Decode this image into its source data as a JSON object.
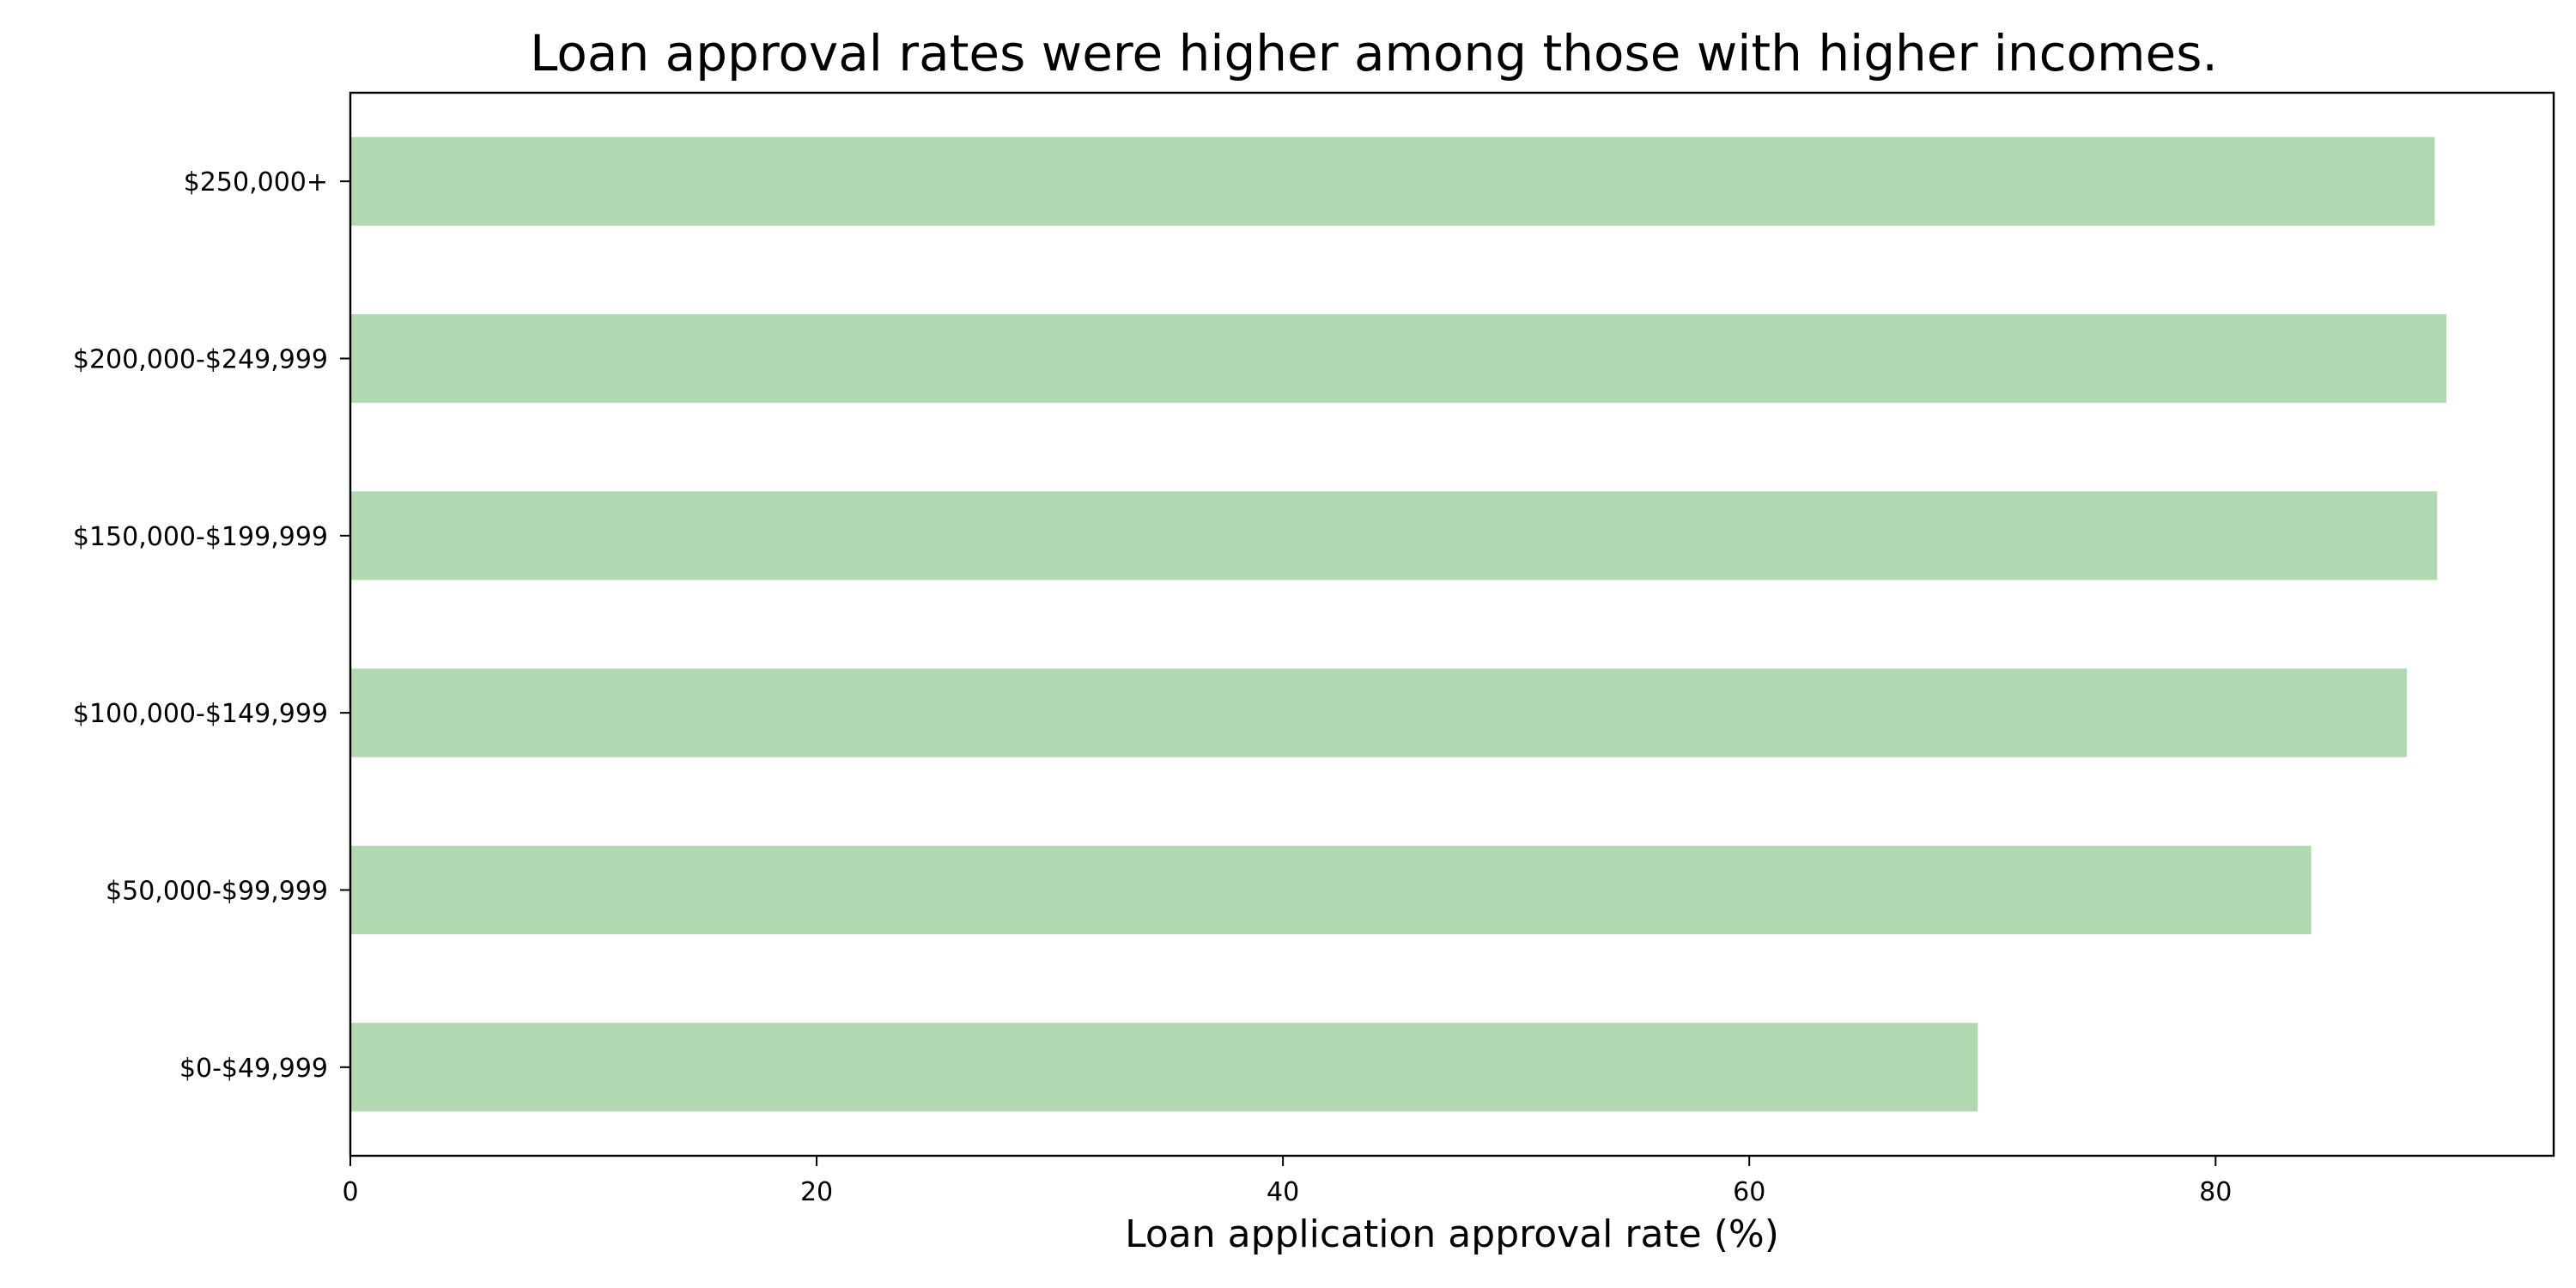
{
  "chart_data": {
    "type": "bar",
    "orientation": "horizontal",
    "title": "Loan approval rates were higher among those with higher incomes.",
    "xlabel": "Loan application approval rate (%)",
    "ylabel": "",
    "categories": [
      "$0-$49,999",
      "$50,000-$99,999",
      "$100,000-$149,999",
      "$150,000-$199,999",
      "$200,000-$249,999",
      "$250,000+"
    ],
    "values": [
      69.8,
      84.1,
      88.2,
      89.5,
      89.9,
      89.4
    ],
    "xlim": [
      0,
      94.5
    ],
    "xticks": [
      0,
      20,
      40,
      60,
      80
    ],
    "bar_color": "#b2d8b2",
    "grid": false,
    "legend": "none"
  }
}
